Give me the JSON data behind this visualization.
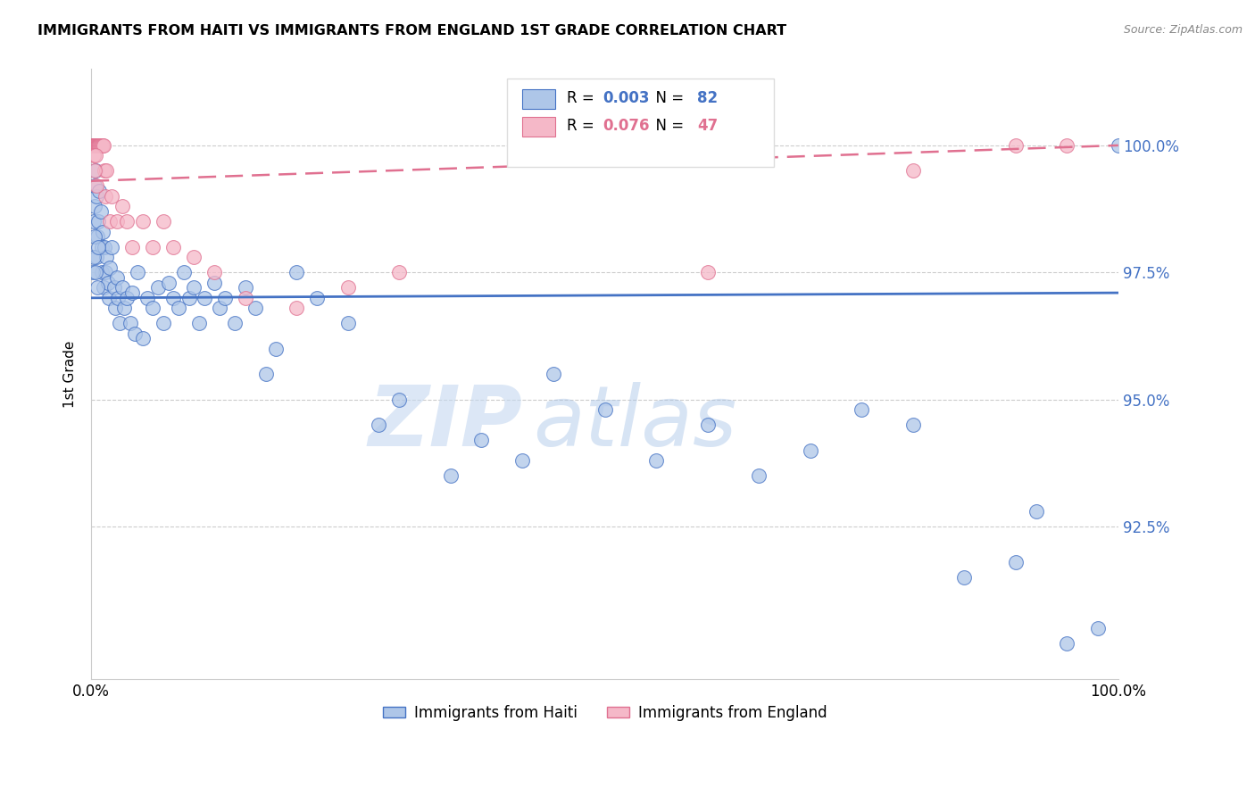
{
  "title": "IMMIGRANTS FROM HAITI VS IMMIGRANTS FROM ENGLAND 1ST GRADE CORRELATION CHART",
  "source": "Source: ZipAtlas.com",
  "ylabel": "1st Grade",
  "xlim": [
    0,
    100
  ],
  "ylim": [
    89.5,
    101.5
  ],
  "yticks": [
    92.5,
    95.0,
    97.5,
    100.0
  ],
  "xtick_labels": [
    "0.0%",
    "",
    "",
    "",
    "",
    "100.0%"
  ],
  "haiti_R": 0.003,
  "haiti_N": 82,
  "england_R": 0.076,
  "england_N": 47,
  "haiti_color": "#aec6e8",
  "england_color": "#f5b8c8",
  "haiti_line_color": "#4472c4",
  "england_line_color": "#e07090",
  "watermark_zip": "ZIP",
  "watermark_atlas": "atlas",
  "haiti_x": [
    0.2,
    0.3,
    0.3,
    0.4,
    0.5,
    0.5,
    0.6,
    0.7,
    0.8,
    0.9,
    1.0,
    1.0,
    1.1,
    1.2,
    1.3,
    1.4,
    1.5,
    1.6,
    1.7,
    1.8,
    2.0,
    2.2,
    2.3,
    2.5,
    2.6,
    2.8,
    3.0,
    3.2,
    3.5,
    3.8,
    4.0,
    4.2,
    4.5,
    5.0,
    5.5,
    6.0,
    6.5,
    7.0,
    7.5,
    8.0,
    8.5,
    9.0,
    9.5,
    10.0,
    10.5,
    11.0,
    12.0,
    12.5,
    13.0,
    14.0,
    15.0,
    16.0,
    17.0,
    18.0,
    20.0,
    22.0,
    25.0,
    28.0,
    30.0,
    35.0,
    38.0,
    42.0,
    45.0,
    50.0,
    55.0,
    60.0,
    65.0,
    70.0,
    75.0,
    80.0,
    85.0,
    90.0,
    92.0,
    95.0,
    98.0,
    100.0,
    0.15,
    0.25,
    0.35,
    0.45,
    0.55,
    0.65
  ],
  "haiti_y": [
    98.5,
    99.2,
    98.8,
    99.5,
    99.0,
    97.8,
    98.2,
    98.5,
    99.1,
    98.7,
    98.0,
    97.5,
    98.3,
    97.2,
    98.0,
    97.5,
    97.8,
    97.3,
    97.0,
    97.6,
    98.0,
    97.2,
    96.8,
    97.4,
    97.0,
    96.5,
    97.2,
    96.8,
    97.0,
    96.5,
    97.1,
    96.3,
    97.5,
    96.2,
    97.0,
    96.8,
    97.2,
    96.5,
    97.3,
    97.0,
    96.8,
    97.5,
    97.0,
    97.2,
    96.5,
    97.0,
    97.3,
    96.8,
    97.0,
    96.5,
    97.2,
    96.8,
    95.5,
    96.0,
    97.5,
    97.0,
    96.5,
    94.5,
    95.0,
    93.5,
    94.2,
    93.8,
    95.5,
    94.8,
    93.8,
    94.5,
    93.5,
    94.0,
    94.8,
    94.5,
    91.5,
    91.8,
    92.8,
    90.2,
    90.5,
    100.0,
    97.5,
    97.8,
    98.2,
    97.5,
    97.2,
    98.0
  ],
  "england_x": [
    0.1,
    0.15,
    0.2,
    0.25,
    0.3,
    0.35,
    0.4,
    0.45,
    0.5,
    0.55,
    0.6,
    0.65,
    0.7,
    0.75,
    0.8,
    0.85,
    0.9,
    1.0,
    1.1,
    1.2,
    1.3,
    1.4,
    1.5,
    1.8,
    2.0,
    2.5,
    3.0,
    3.5,
    4.0,
    5.0,
    6.0,
    7.0,
    8.0,
    10.0,
    12.0,
    15.0,
    20.0,
    25.0,
    30.0,
    60.0,
    80.0,
    90.0,
    95.0,
    0.22,
    0.32,
    0.42,
    0.52
  ],
  "england_y": [
    100.0,
    100.0,
    100.0,
    100.0,
    100.0,
    100.0,
    100.0,
    100.0,
    100.0,
    100.0,
    100.0,
    100.0,
    100.0,
    100.0,
    100.0,
    100.0,
    100.0,
    100.0,
    100.0,
    100.0,
    99.5,
    99.0,
    99.5,
    98.5,
    99.0,
    98.5,
    98.8,
    98.5,
    98.0,
    98.5,
    98.0,
    98.5,
    98.0,
    97.8,
    97.5,
    97.0,
    96.8,
    97.2,
    97.5,
    97.5,
    99.5,
    100.0,
    100.0,
    99.8,
    99.5,
    99.8,
    99.2
  ]
}
